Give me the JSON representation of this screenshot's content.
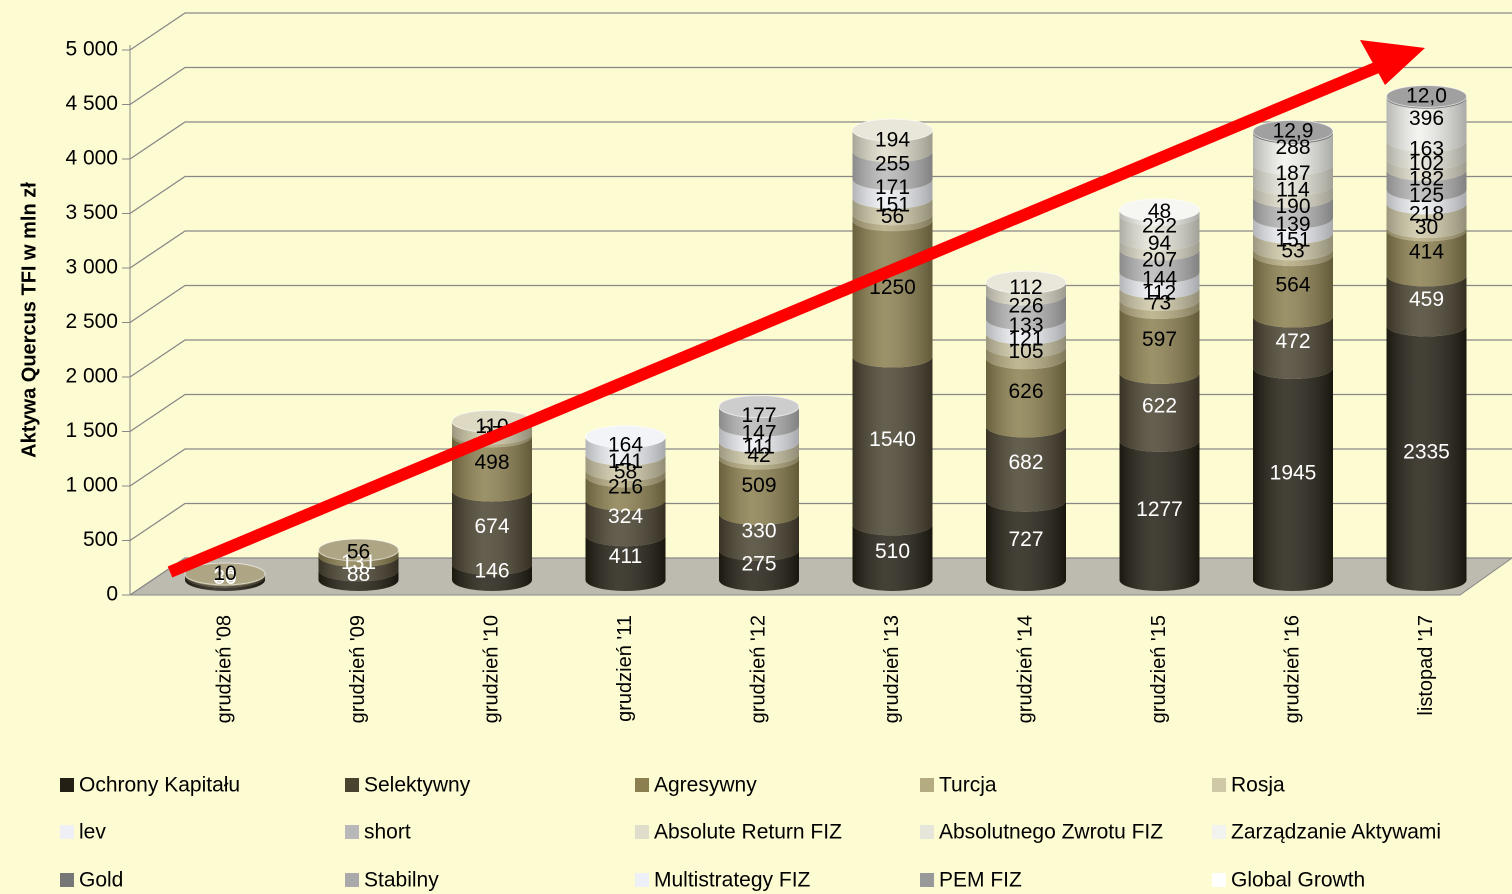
{
  "chart_data": {
    "type": "stacked-cylinder",
    "y_label": "Aktywa Quercus TFI w mln zł",
    "categories": [
      "grudzień '08",
      "grudzień '09",
      "grudzień '10",
      "grudzień '11",
      "grudzień '12",
      "grudzień '13",
      "grudzień '14",
      "grudzień '15",
      "grudzień '16",
      "listopad '17"
    ],
    "ylim": [
      0,
      5000
    ],
    "yticks": [
      0,
      500,
      {
        "value": 1000,
        "label": "1 000"
      },
      {
        "value": 1500,
        "label": "1 500"
      },
      {
        "value": 2000,
        "label": "2 000"
      },
      {
        "value": 2500,
        "label": "2 500"
      },
      {
        "value": 3000,
        "label": "3 000"
      },
      {
        "value": 3500,
        "label": "3 500"
      },
      {
        "value": 4000,
        "label": "4 000"
      },
      {
        "value": 4500,
        "label": "4 500"
      },
      {
        "value": 5000,
        "label": "5 000"
      }
    ],
    "grid": true,
    "series": [
      {
        "name": "Ochrony Kapitału",
        "color": "#231f14",
        "values": [
          30,
          88,
          146,
          411,
          275,
          510,
          727,
          1277,
          1945,
          2335
        ]
      },
      {
        "name": "Selektywny",
        "color": "#4a4330",
        "values": [
          15,
          131,
          674,
          324,
          330,
          1540,
          682,
          622,
          472,
          459
        ]
      },
      {
        "name": "Agresywny",
        "color": "#8b7f4f",
        "values": [
          10,
          56,
          498,
          216,
          509,
          1250,
          626,
          597,
          564,
          414
        ]
      },
      {
        "name": "Turcja",
        "color": "#b5ab80",
        "values": [
          null,
          null,
          27,
          58,
          42,
          56,
          105,
          73,
          53,
          30
        ]
      },
      {
        "name": "Rosja",
        "color": "#cfc9a8",
        "values": [
          null,
          null,
          110,
          141,
          111,
          151,
          121,
          112,
          151,
          218
        ]
      },
      {
        "name": "lev",
        "color": "#eef0f5",
        "values": [
          null,
          null,
          null,
          164,
          147,
          171,
          133,
          144,
          139,
          125
        ]
      },
      {
        "name": "short",
        "color": "#b8b8b8",
        "values": [
          null,
          null,
          null,
          null,
          177,
          255,
          226,
          207,
          190,
          182
        ]
      },
      {
        "name": "Absolute Return FIZ",
        "color": "#e0ddcb",
        "values": [
          null,
          null,
          null,
          null,
          null,
          194,
          112,
          94,
          114,
          102
        ]
      },
      {
        "name": "Absolutnego Zwrotu FIZ",
        "color": "#e6e6da",
        "values": [
          null,
          null,
          null,
          null,
          null,
          null,
          null,
          222,
          187,
          163
        ]
      },
      {
        "name": "Zarządzanie Aktywami",
        "color": "#f2f2ee",
        "values": [
          null,
          null,
          null,
          null,
          null,
          null,
          null,
          48,
          288,
          396
        ]
      },
      {
        "name": "Gold",
        "color": "#777777",
        "values": [
          null,
          null,
          null,
          null,
          null,
          null,
          null,
          null,
          12.9,
          12.0
        ],
        "value_labels": [
          null,
          null,
          null,
          null,
          null,
          null,
          null,
          null,
          "12,9",
          "12,0"
        ]
      },
      {
        "name": "Stabilny",
        "color": "#aaaaaa",
        "values": [
          null,
          null,
          null,
          null,
          null,
          null,
          null,
          null,
          null,
          null
        ]
      },
      {
        "name": "Multistrategy FIZ",
        "color": "#eef0f8",
        "values": [
          null,
          null,
          null,
          null,
          null,
          null,
          null,
          null,
          null,
          null
        ]
      },
      {
        "name": "PEM FIZ",
        "color": "#999999",
        "values": [
          null,
          null,
          null,
          null,
          null,
          null,
          null,
          null,
          null,
          null
        ]
      },
      {
        "name": "Global Growth",
        "color": "#ffffff",
        "values": [
          null,
          null,
          null,
          null,
          null,
          null,
          null,
          null,
          null,
          null
        ]
      }
    ]
  }
}
